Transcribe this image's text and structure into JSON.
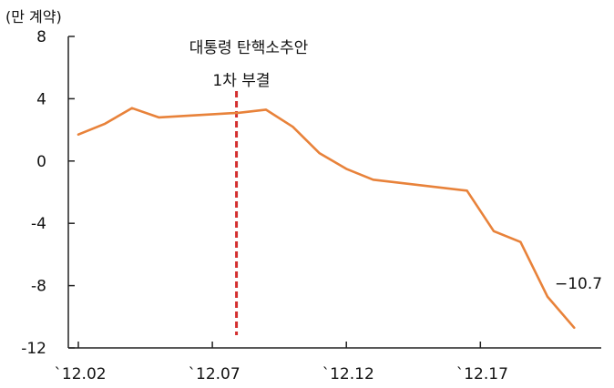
{
  "chart_data": {
    "type": "line",
    "unit_label": "(만 계약)",
    "ylim": [
      -12,
      8
    ],
    "yticks": [
      8,
      4,
      0,
      -4,
      -8,
      -12
    ],
    "xlim": [
      0,
      19
    ],
    "xticks": [
      {
        "x": 0,
        "label": "`12.02"
      },
      {
        "x": 5,
        "label": "`12.07"
      },
      {
        "x": 10,
        "label": "`12.12"
      },
      {
        "x": 15,
        "label": "`12.17"
      }
    ],
    "series": [
      {
        "color": "#e8823a",
        "points": [
          {
            "x": 0,
            "y": 1.7
          },
          {
            "x": 1,
            "y": 2.4
          },
          {
            "x": 2,
            "y": 3.4
          },
          {
            "x": 3,
            "y": 2.8
          },
          {
            "x": 4,
            "y": 2.9
          },
          {
            "x": 6,
            "y": 3.1
          },
          {
            "x": 7,
            "y": 3.3
          },
          {
            "x": 8,
            "y": 2.2
          },
          {
            "x": 9,
            "y": 0.5
          },
          {
            "x": 10,
            "y": -0.5
          },
          {
            "x": 11,
            "y": -1.2
          },
          {
            "x": 14.5,
            "y": -1.9
          },
          {
            "x": 15.5,
            "y": -4.5
          },
          {
            "x": 16.5,
            "y": -5.2
          },
          {
            "x": 17.5,
            "y": -8.7
          },
          {
            "x": 18.5,
            "y": -10.7
          }
        ]
      }
    ],
    "annotations": {
      "event_line": {
        "x": 5.9,
        "color": "#d32f2f",
        "line1": "대통령 탄핵소추안",
        "line2": "1차 부결"
      },
      "end_value_label": "−10.7"
    },
    "grid": false
  }
}
